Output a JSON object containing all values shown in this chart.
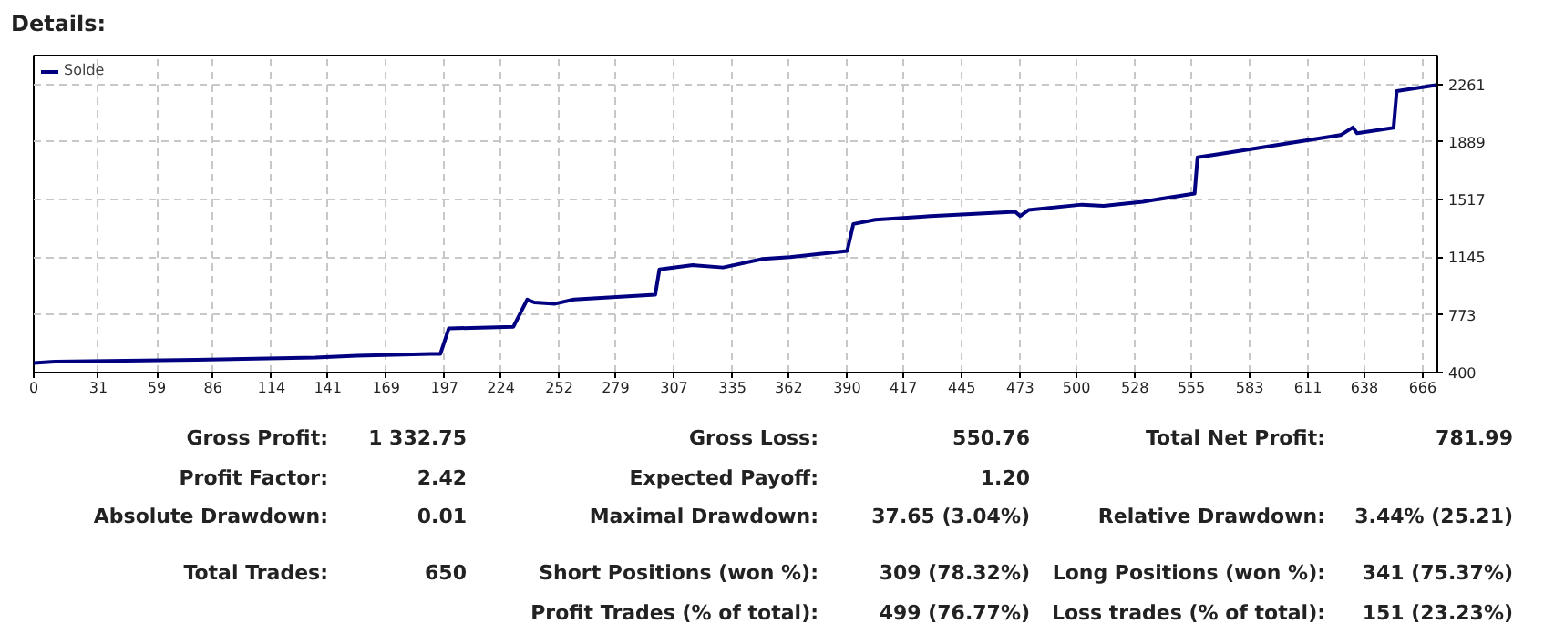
{
  "chart_data": {
    "type": "line",
    "title": "Details:",
    "x": [
      0,
      10,
      78,
      135,
      155,
      190.5,
      195,
      199,
      230,
      236.6,
      240,
      250,
      259,
      298,
      300,
      316,
      330.5,
      349.5,
      362.6,
      390,
      393,
      403.5,
      430,
      470.6,
      473,
      477,
      502.6,
      513,
      531.8,
      556.6,
      558,
      571,
      626.6,
      632.5,
      634.5,
      652,
      653.5,
      673
    ],
    "series": [
      {
        "name": "Solde",
        "color": "#000080",
        "values": [
          462,
          470,
          482,
          497,
          509,
          521,
          521,
          685,
          696,
          872,
          853,
          845,
          872,
          903,
          1067,
          1094,
          1079,
          1134,
          1146,
          1185,
          1360,
          1387,
          1411,
          1439,
          1411,
          1450,
          1485,
          1477,
          1504,
          1556,
          1790,
          1817,
          1934,
          1984,
          1946,
          1981,
          2218,
          2258
        ]
      }
    ],
    "xlim": [
      0,
      673
    ],
    "ylim": [
      400,
      2448
    ],
    "xticks": [
      0,
      31,
      59,
      86,
      114,
      141,
      169,
      197,
      224,
      252,
      279,
      307,
      335,
      362,
      390,
      417,
      445,
      473,
      500,
      528,
      555,
      583,
      611,
      638,
      666
    ],
    "yticks": [
      400,
      773,
      1145,
      1517,
      1889,
      2261
    ],
    "grid": true,
    "legend": "top left",
    "marker": "none",
    "line_style": "solid",
    "annotations": [
      "Gross Profit:",
      "1 332.75",
      "Gross Loss:",
      "550.76",
      "Total Net Profit:",
      "781.99",
      "Profit Factor:",
      "2.42",
      "Expected Payoff:",
      "1.20",
      "Absolute Drawdown:",
      "0.01",
      "Maximal Drawdown:",
      "37.65 (3.04%)",
      "Relative Drawdown:",
      "3.44% (25.21)",
      "Total Trades:",
      "650",
      "Short Positions (won %):",
      "309 (78.32%)",
      "Long Positions (won %):",
      "341 (75.37%)",
      "Profit Trades (% of total):",
      "499 (76.77%)",
      "Loss trades (% of total):",
      "151 (23.23%)"
    ]
  }
}
